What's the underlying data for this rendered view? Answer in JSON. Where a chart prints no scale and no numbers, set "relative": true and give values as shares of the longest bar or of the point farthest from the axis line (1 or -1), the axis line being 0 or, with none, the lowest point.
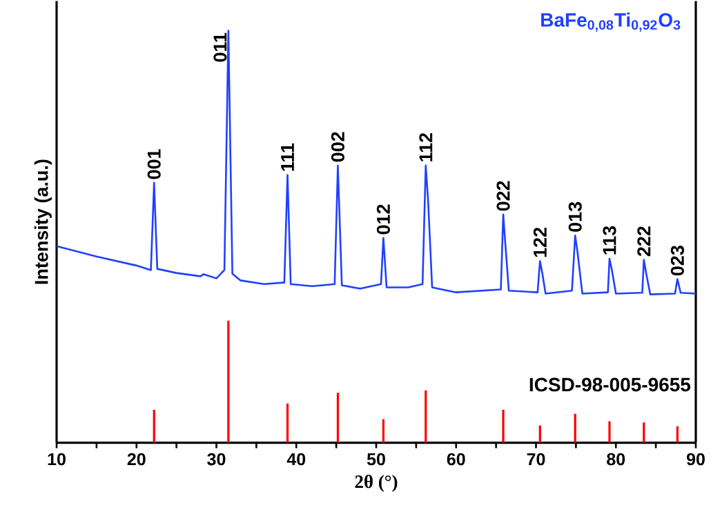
{
  "chart_data": {
    "type": "line",
    "relative": true,
    "xlabel": "2θ (°)",
    "ylabel": "Intensity (a.u.)",
    "xlim": [
      10,
      90
    ],
    "xticks": [
      10,
      {
        "value": 15,
        "label": null
      },
      20,
      {
        "value": 25,
        "label": null
      },
      30,
      {
        "value": 35,
        "label": null
      },
      40,
      {
        "value": 45,
        "label": null
      },
      50,
      {
        "value": 55,
        "label": null
      },
      60,
      {
        "value": 65,
        "label": null
      },
      70,
      {
        "value": 75,
        "label": null
      },
      80,
      {
        "value": 85,
        "label": null
      },
      90
    ],
    "series": [
      {
        "name": "BaFe$_{0,08}$Ti$_{0,92}$O$_{3}$",
        "color": "#2040ff",
        "x": [
          10,
          15,
          20,
          21.8,
          22.2,
          22.6,
          25,
          28,
          28.4,
          30,
          31.0,
          31.5,
          32.0,
          33,
          36,
          38.5,
          38.9,
          39.3,
          42,
          44.8,
          45.2,
          45.7,
          48,
          50.6,
          50.9,
          51.3,
          54,
          55.8,
          56.2,
          56.5,
          57,
          60,
          65.6,
          65.9,
          66.1,
          66.6,
          70.2,
          70.5,
          70.8,
          71.2,
          74.5,
          74.9,
          75.2,
          75.8,
          79.0,
          79.2,
          79.5,
          80,
          83.3,
          83.5,
          83.8,
          84.3,
          87.4,
          87.7,
          88.1,
          90
        ],
        "values": [
          0.477,
          0.452,
          0.43,
          0.419,
          0.631,
          0.422,
          0.412,
          0.404,
          0.409,
          0.399,
          0.419,
          1.0,
          0.41,
          0.394,
          0.385,
          0.389,
          0.65,
          0.385,
          0.38,
          0.385,
          0.673,
          0.382,
          0.374,
          0.385,
          0.497,
          0.377,
          0.377,
          0.385,
          0.673,
          0.586,
          0.377,
          0.365,
          0.372,
          0.554,
          0.499,
          0.369,
          0.365,
          0.441,
          0.41,
          0.362,
          0.369,
          0.503,
          0.462,
          0.362,
          0.365,
          0.447,
          0.419,
          0.362,
          0.364,
          0.444,
          0.41,
          0.36,
          0.362,
          0.397,
          0.364,
          0.362
        ]
      },
      {
        "name": "ICSD-98-005-9655",
        "color": "#ff0000",
        "type": "bar",
        "x": [
          22.2,
          31.5,
          38.9,
          45.2,
          50.9,
          56.2,
          65.9,
          70.5,
          74.9,
          79.2,
          83.5,
          87.7
        ],
        "values": [
          0.08,
          0.296,
          0.095,
          0.121,
          0.057,
          0.127,
          0.08,
          0.042,
          0.07,
          0.052,
          0.049,
          0.04
        ]
      }
    ],
    "annotations": [
      {
        "text": "001",
        "x": 22.2,
        "y": 0.631
      },
      {
        "text": "011",
        "x": 31.5,
        "y": 1.0
      },
      {
        "text": "111",
        "x": 38.9,
        "y": 0.65
      },
      {
        "text": "002",
        "x": 45.2,
        "y": 0.673
      },
      {
        "text": "012",
        "x": 50.9,
        "y": 0.497
      },
      {
        "text": "112",
        "x": 56.2,
        "y": 0.673
      },
      {
        "text": "022",
        "x": 65.9,
        "y": 0.554
      },
      {
        "text": "122",
        "x": 70.5,
        "y": 0.441
      },
      {
        "text": "013",
        "x": 74.9,
        "y": 0.503
      },
      {
        "text": "113",
        "x": 79.2,
        "y": 0.447
      },
      {
        "text": "222",
        "x": 83.5,
        "y": 0.444
      },
      {
        "text": "023",
        "x": 87.7,
        "y": 0.397
      }
    ]
  }
}
